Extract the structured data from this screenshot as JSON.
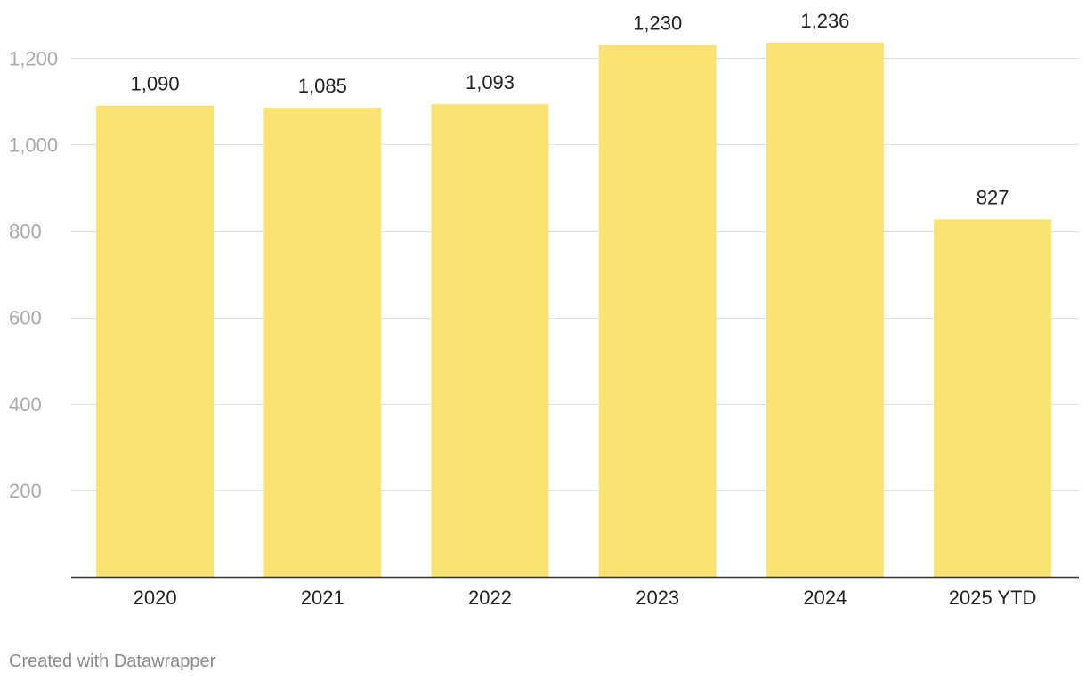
{
  "chart_data": {
    "type": "bar",
    "title": "",
    "xlabel": "",
    "ylabel": "",
    "categories": [
      "2020",
      "2021",
      "2022",
      "2023",
      "2024",
      "2025 YTD"
    ],
    "values": [
      1090,
      1085,
      1093,
      1230,
      1236,
      827
    ],
    "value_labels": [
      "1,090",
      "1,085",
      "1,093",
      "1,230",
      "1,236",
      "827"
    ],
    "ylim": [
      0,
      1200
    ],
    "yticks": [
      200,
      400,
      600,
      800,
      1000,
      1200
    ],
    "ytick_labels": [
      "200",
      "400",
      "600",
      "800",
      "1,000",
      "1,200"
    ],
    "grid": true,
    "legend": "none",
    "colors": {
      "bar": "#fae373",
      "gridline": "#e2e2e2",
      "baseline": "#333333",
      "ytick_text": "#aaaaaa",
      "label_text": "#222222"
    }
  },
  "credit": "Created with Datawrapper"
}
